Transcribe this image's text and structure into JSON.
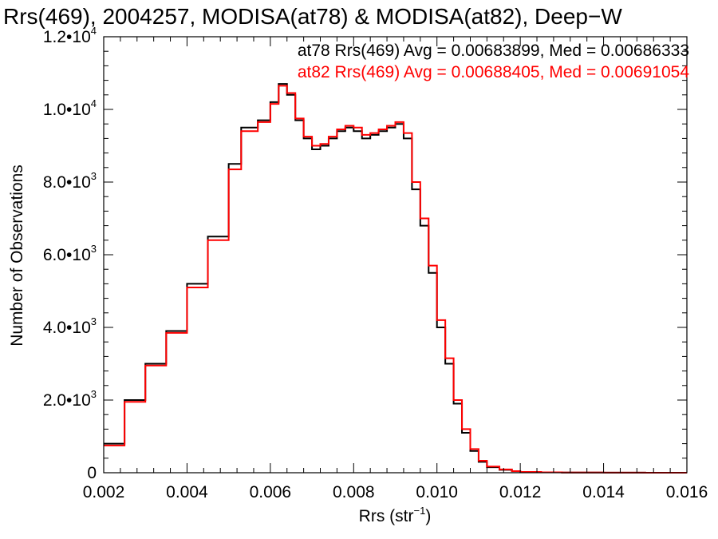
{
  "chart_data": {
    "type": "line",
    "title": "Rrs(469), 2004257, MODISA(at78) & MODISA(at82), Deep−W",
    "xlabel": "Rrs (str",
    "xlabel_sup": "−1",
    "xlabel_close": ")",
    "ylabel": "Number of Observations",
    "xlim": [
      0.002,
      0.016
    ],
    "ylim": [
      0,
      12000
    ],
    "x_ticks": [
      {
        "value": 0.002,
        "label": "0.002"
      },
      {
        "value": 0.004,
        "label": "0.004"
      },
      {
        "value": 0.006,
        "label": "0.006"
      },
      {
        "value": 0.008,
        "label": "0.008"
      },
      {
        "value": 0.01,
        "label": "0.010"
      },
      {
        "value": 0.012,
        "label": "0.012"
      },
      {
        "value": 0.014,
        "label": "0.014"
      },
      {
        "value": 0.016,
        "label": "0.016"
      }
    ],
    "y_ticks": [
      {
        "value": 0,
        "mant": "0",
        "exp": ""
      },
      {
        "value": 2000,
        "mant": "2.0•10",
        "exp": "3"
      },
      {
        "value": 4000,
        "mant": "4.0•10",
        "exp": "3"
      },
      {
        "value": 6000,
        "mant": "6.0•10",
        "exp": "3"
      },
      {
        "value": 8000,
        "mant": "8.0•10",
        "exp": "3"
      },
      {
        "value": 10000,
        "mant": "1.0•10",
        "exp": "4"
      },
      {
        "value": 12000,
        "mant": "1.2•10",
        "exp": "4"
      }
    ],
    "grid": false,
    "step": "histogram",
    "x": [
      0.002,
      0.0025,
      0.003,
      0.0035,
      0.004,
      0.0045,
      0.005,
      0.0053,
      0.0057,
      0.006,
      0.0062,
      0.0064,
      0.0066,
      0.0068,
      0.007,
      0.0072,
      0.0074,
      0.0076,
      0.0078,
      0.008,
      0.0082,
      0.0084,
      0.0086,
      0.0088,
      0.009,
      0.0092,
      0.0094,
      0.0096,
      0.0098,
      0.01,
      0.0102,
      0.0104,
      0.0106,
      0.0108,
      0.011,
      0.0112,
      0.0115,
      0.0118,
      0.012,
      0.0125,
      0.013,
      0.014,
      0.015,
      0.016
    ],
    "series": [
      {
        "name": "at78",
        "color": "#000000",
        "values": [
          800,
          2000,
          3000,
          3900,
          5200,
          6500,
          8500,
          9500,
          9700,
          10200,
          10700,
          10400,
          9700,
          9200,
          8900,
          9000,
          9200,
          9400,
          9500,
          9400,
          9200,
          9300,
          9400,
          9500,
          9600,
          9200,
          7800,
          6800,
          5500,
          4000,
          3000,
          1900,
          1100,
          600,
          300,
          150,
          80,
          40,
          20,
          10,
          5,
          3,
          1,
          0
        ]
      },
      {
        "name": "at82",
        "color": "#ff0000",
        "values": [
          750,
          1950,
          2950,
          3850,
          5100,
          6400,
          8350,
          9400,
          9650,
          10150,
          10650,
          10450,
          9750,
          9250,
          9000,
          9050,
          9250,
          9450,
          9550,
          9500,
          9300,
          9350,
          9450,
          9550,
          9650,
          9350,
          8000,
          7000,
          5700,
          4200,
          3150,
          2000,
          1200,
          650,
          330,
          170,
          90,
          45,
          22,
          11,
          6,
          3,
          1,
          0
        ]
      }
    ],
    "annotations": [
      {
        "text": "at78 Rrs(469) Avg = 0.00683899, Med = 0.00686333",
        "color": "#000000"
      },
      {
        "text": "at82 Rrs(469) Avg = 0.00688405, Med = 0.00691054",
        "color": "#ff0000"
      }
    ]
  }
}
